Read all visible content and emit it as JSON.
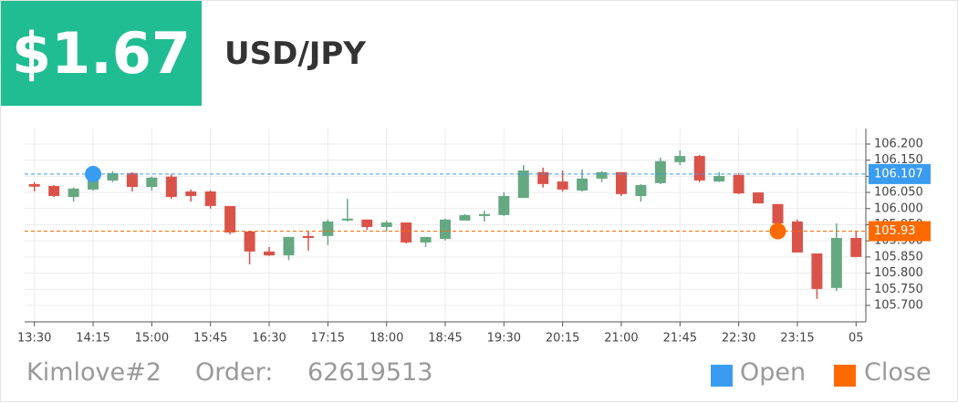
{
  "header": {
    "price": "$1.67",
    "pair": "USD/JPY"
  },
  "footer": {
    "account": "Kimlove#2",
    "order_label": "Order:",
    "order_number": "62619513",
    "legend": [
      {
        "name": "Open",
        "color": "#3a9cf0"
      },
      {
        "name": "Close",
        "color": "#ff6a00"
      }
    ]
  },
  "chart_data": {
    "type": "candlestick",
    "categories": [
      "13:30",
      null,
      null,
      "14:15",
      null,
      null,
      "15:00",
      null,
      null,
      "15:45",
      null,
      null,
      "16:30",
      null,
      null,
      "17:15",
      null,
      null,
      "18:00",
      null,
      null,
      "18:45",
      null,
      null,
      "19:30",
      null,
      null,
      "20:15",
      null,
      null,
      "21:00",
      null,
      null,
      "21:45",
      null,
      null,
      "22:30",
      null,
      null,
      "23:15",
      null,
      null,
      "05"
    ],
    "open": [
      106.076,
      106.07,
      106.036,
      106.059,
      106.087,
      106.11,
      106.067,
      106.099,
      106.053,
      106.053,
      106.008,
      105.929,
      105.867,
      105.855,
      105.915,
      105.915,
      105.963,
      105.966,
      105.943,
      105.957,
      105.895,
      105.906,
      105.963,
      105.977,
      105.98,
      106.033,
      106.113,
      106.084,
      106.056,
      106.093,
      106.113,
      106.039,
      106.079,
      106.144,
      106.163,
      106.084,
      106.104,
      106.05,
      106.014,
      105.96,
      105.861,
      105.754,
      105.909
    ],
    "high": [
      106.082,
      106.073,
      106.065,
      106.107,
      106.116,
      106.113,
      106.099,
      106.107,
      106.059,
      106.056,
      106.008,
      105.929,
      105.881,
      105.912,
      105.929,
      105.966,
      106.03,
      105.966,
      105.963,
      105.957,
      105.912,
      105.969,
      105.983,
      105.994,
      106.05,
      106.135,
      106.127,
      106.118,
      106.121,
      106.116,
      106.113,
      106.076,
      106.158,
      106.18,
      106.166,
      106.113,
      106.11,
      106.05,
      106.014,
      105.966,
      105.861,
      105.954,
      105.929
    ],
    "low": [
      106.053,
      106.036,
      106.022,
      106.056,
      106.082,
      106.053,
      106.056,
      106.03,
      106.022,
      106.0,
      105.92,
      105.827,
      105.853,
      105.84,
      105.87,
      105.887,
      105.96,
      105.934,
      105.929,
      105.892,
      105.881,
      105.901,
      105.966,
      105.96,
      105.977,
      106.033,
      106.065,
      106.053,
      106.053,
      106.082,
      106.039,
      106.022,
      106.076,
      106.135,
      106.082,
      106.082,
      106.045,
      106.016,
      105.937,
      105.864,
      105.72,
      105.744,
      105.85
    ],
    "close": [
      106.068,
      106.039,
      106.062,
      106.093,
      106.11,
      106.067,
      106.096,
      106.036,
      106.039,
      106.008,
      105.926,
      105.867,
      105.855,
      105.912,
      105.909,
      105.96,
      105.969,
      105.943,
      105.957,
      105.895,
      105.912,
      105.966,
      105.98,
      105.983,
      106.039,
      106.118,
      106.076,
      106.059,
      106.093,
      106.113,
      106.045,
      106.073,
      106.147,
      106.163,
      106.087,
      106.101,
      106.047,
      106.016,
      105.954,
      105.864,
      105.751,
      105.909,
      105.85
    ],
    "up_color": "#66a882",
    "down_color": "#d9534a",
    "open_price": 106.107,
    "close_price": 105.93,
    "ylim": [
      105.649,
      106.248
    ],
    "yticks": [
      {
        "value": 105.7,
        "label": "105.700"
      },
      {
        "value": 105.75,
        "label": "105.750"
      },
      {
        "value": 105.8,
        "label": "105.800"
      },
      {
        "value": 105.85,
        "label": "105.850"
      },
      {
        "value": 105.9,
        "label": "105.900"
      },
      {
        "value": 105.95,
        "label": "105.950"
      },
      {
        "value": 106,
        "label": "106.000"
      },
      {
        "value": 106.05,
        "label": "106.050"
      },
      {
        "value": 106.1,
        "label": "106.100"
      },
      {
        "value": 106.15,
        "label": "106.150"
      },
      {
        "value": 106.2,
        "label": "106.200"
      }
    ],
    "grid": true
  }
}
